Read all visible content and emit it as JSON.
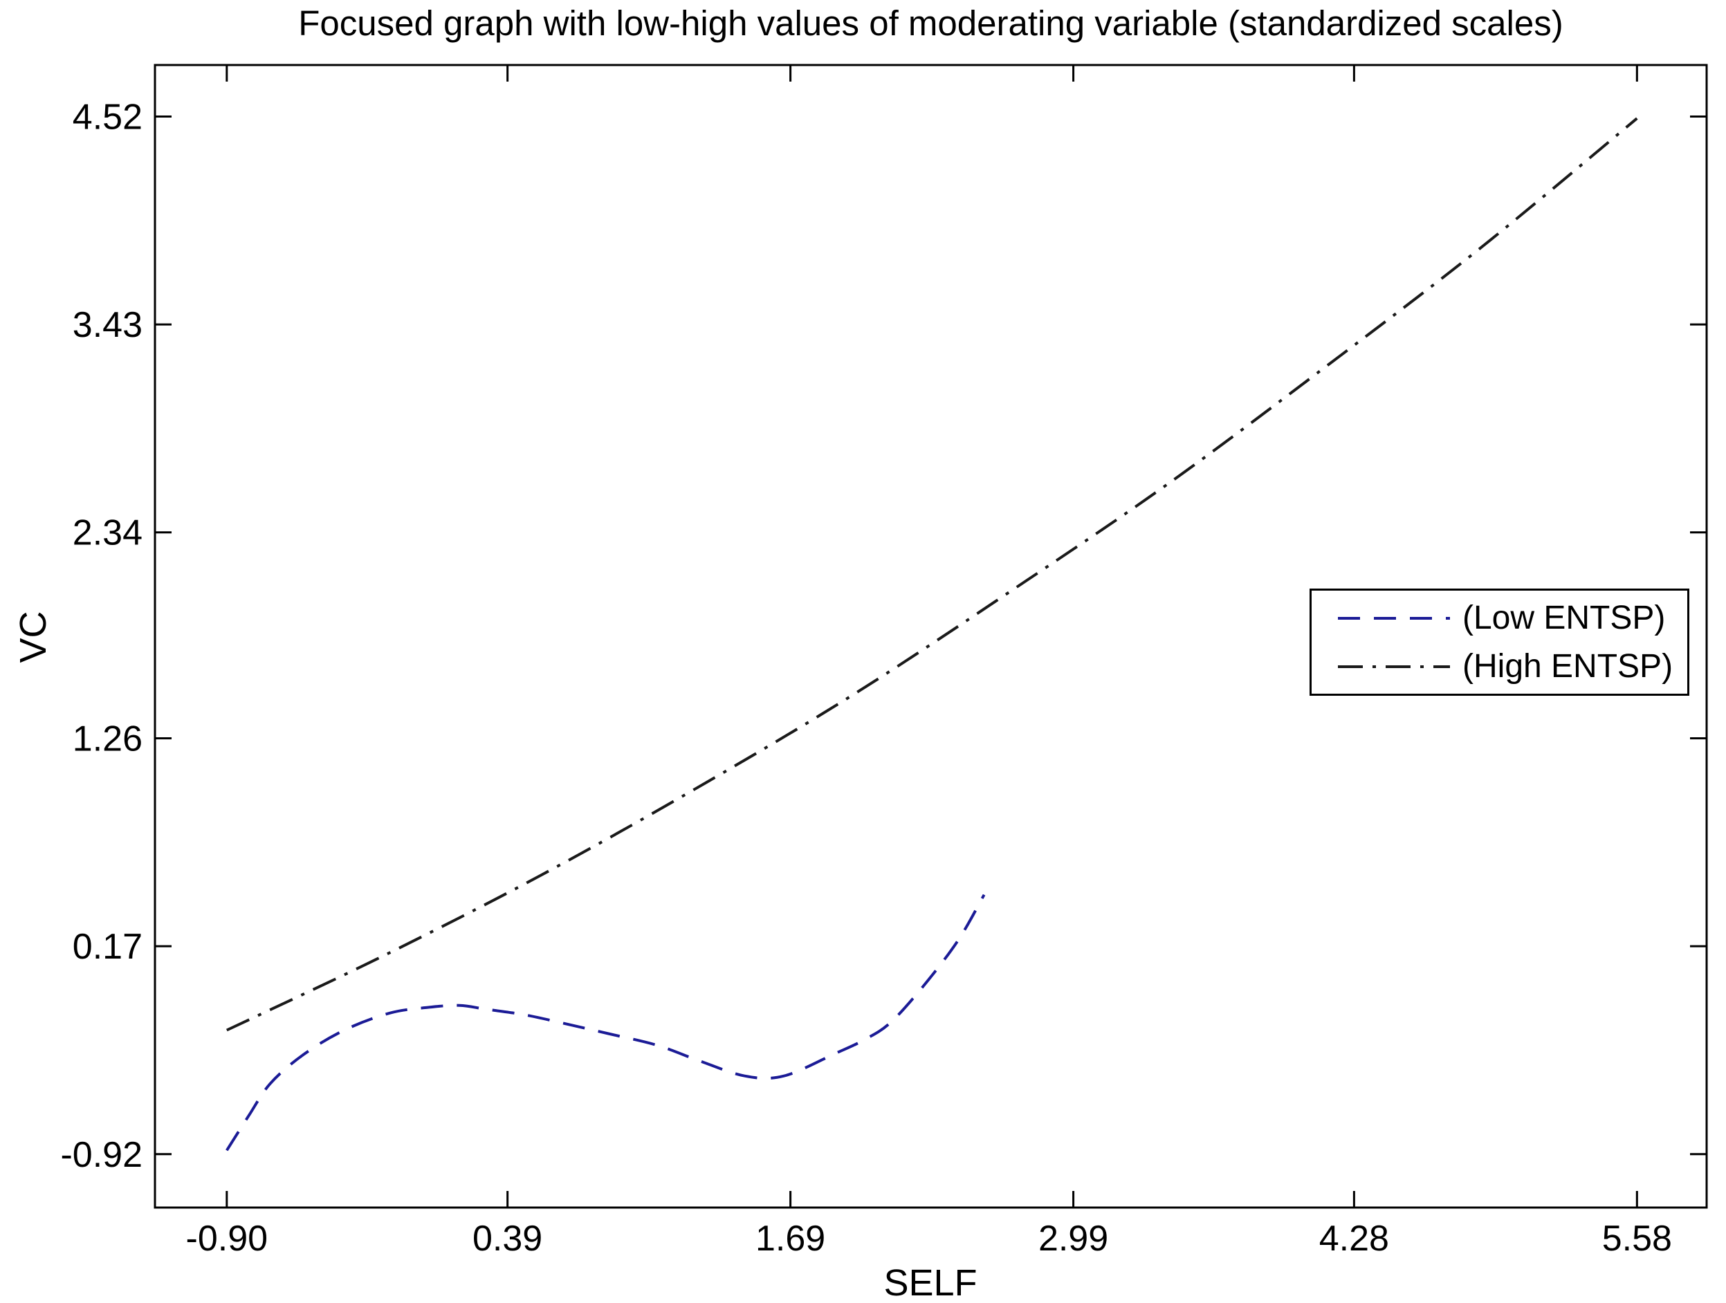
{
  "chart_data": {
    "type": "line",
    "title": "Focused graph with low-high values of moderating variable (standardized scales)",
    "xlabel": "SELF",
    "ylabel": "VC",
    "xlim": [
      -1.23,
      5.9
    ],
    "ylim": [
      -1.2,
      4.79
    ],
    "xticks": [
      -0.9,
      0.39,
      1.69,
      2.99,
      4.28,
      5.58
    ],
    "xtick_labels": [
      "-0.90",
      "0.39",
      "1.69",
      "2.99",
      "4.28",
      "5.58"
    ],
    "yticks": [
      -0.92,
      0.17,
      1.26,
      2.34,
      3.43,
      4.52
    ],
    "ytick_labels": [
      "-0.92",
      "0.17",
      "1.26",
      "2.34",
      "3.43",
      "4.52"
    ],
    "grid": false,
    "box": true,
    "legend_position": "middle-right",
    "axis_color": "#000000",
    "series": [
      {
        "name": "(Low ENTSP)",
        "line_style": "dashed",
        "color": "#1b1b96",
        "x": [
          -0.9,
          -0.8,
          -0.7,
          -0.55,
          -0.36,
          -0.15,
          0.03,
          0.17,
          0.29,
          0.47,
          0.67,
          0.86,
          1.08,
          1.27,
          1.48,
          1.66,
          1.9,
          2.03,
          2.15,
          2.3,
          2.46,
          2.58
        ],
        "y": [
          -0.9,
          -0.72,
          -0.55,
          -0.4,
          -0.27,
          -0.18,
          -0.15,
          -0.14,
          -0.16,
          -0.19,
          -0.24,
          -0.29,
          -0.35,
          -0.43,
          -0.51,
          -0.51,
          -0.39,
          -0.32,
          -0.23,
          -0.04,
          0.2,
          0.44
        ]
      },
      {
        "name": "(High ENTSP)",
        "line_style": "dash-dot",
        "color": "#1a1a1a",
        "x": [
          -0.9,
          -0.18,
          0.54,
          1.26,
          1.98,
          2.7,
          3.42,
          4.14,
          4.86,
          5.58
        ],
        "y": [
          -0.27,
          0.12,
          0.54,
          1.0,
          1.49,
          2.03,
          2.59,
          3.2,
          3.83,
          4.51
        ]
      }
    ]
  }
}
